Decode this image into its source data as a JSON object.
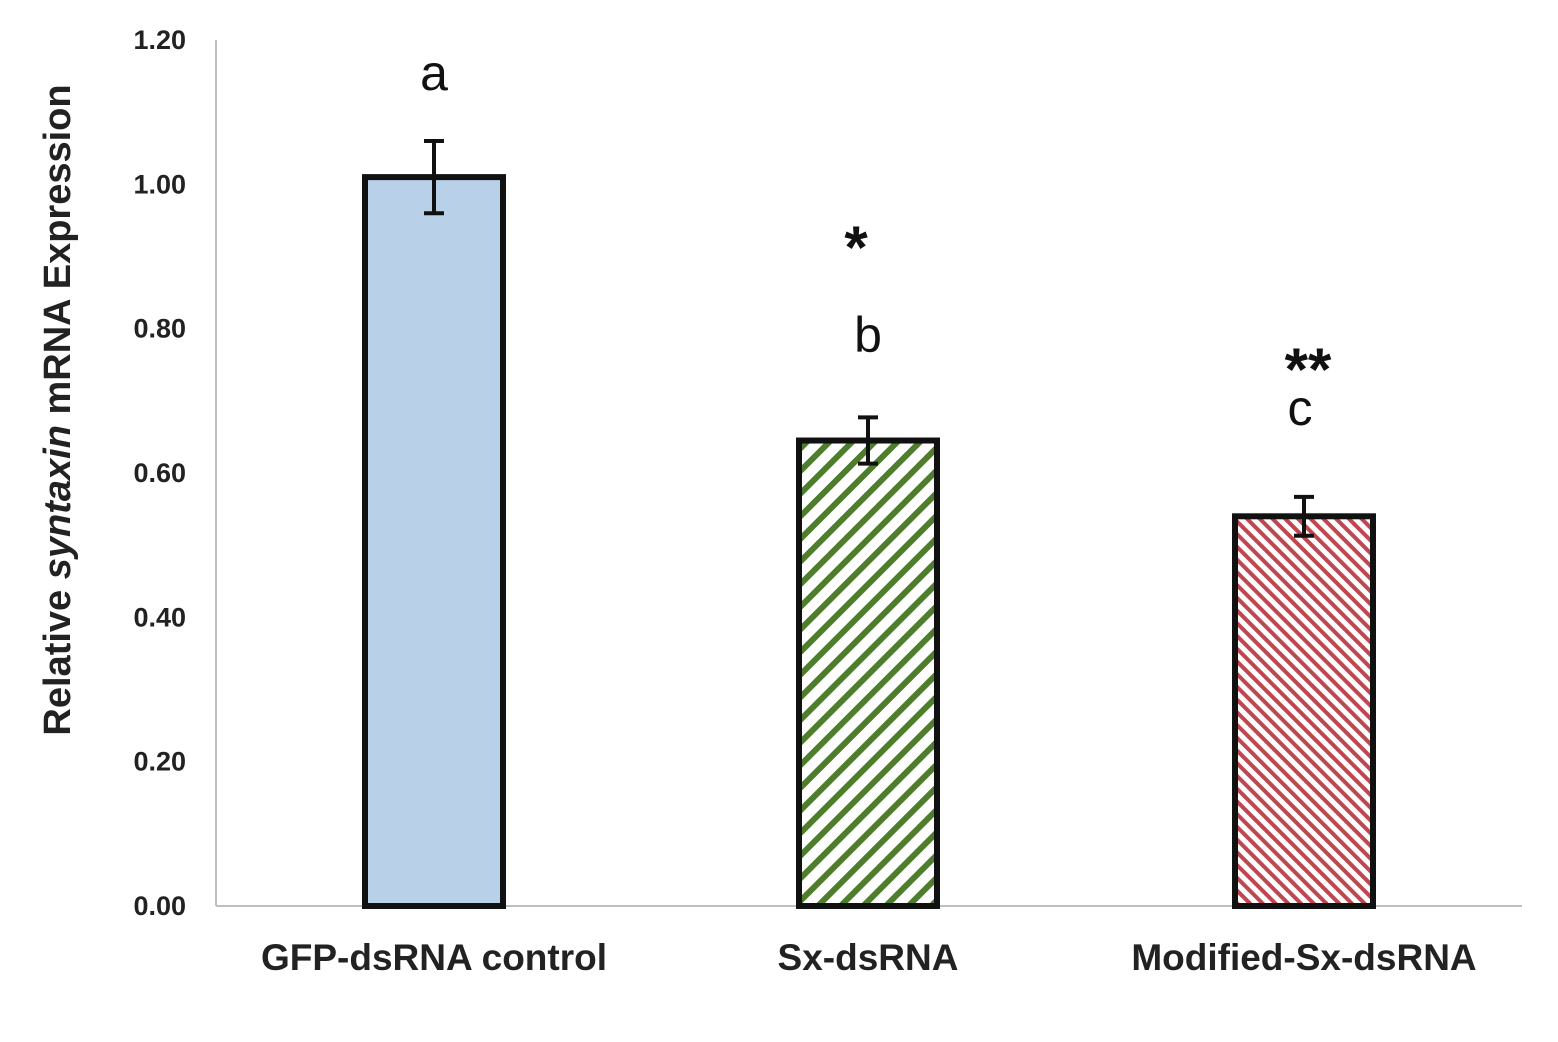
{
  "chart_data": {
    "type": "bar",
    "title": "",
    "xlabel": "",
    "ylabel_parts": [
      "Relative ",
      "syntaxin",
      " mRNA Expression"
    ],
    "ylim": [
      0,
      1.2
    ],
    "yticks": [
      "0.00",
      "0.20",
      "0.40",
      "0.60",
      "0.80",
      "1.00",
      "1.20"
    ],
    "grid": false,
    "categories": [
      "GFP-dsRNA control",
      "Sx-dsRNA",
      "Modified-Sx-dsRNA"
    ],
    "values": [
      1.01,
      0.645,
      0.54
    ],
    "errors": [
      0.05,
      0.032,
      0.027
    ],
    "significance_letters": [
      "a",
      "b",
      "c"
    ],
    "stars": [
      "",
      "*",
      "**"
    ],
    "fills": [
      {
        "kind": "solid",
        "color": "#b8d0e8"
      },
      {
        "kind": "hatch",
        "color": "#4e7d2c",
        "background": "#ffffff"
      },
      {
        "kind": "hatch",
        "color": "#c0464f",
        "background": "#ffffff"
      }
    ],
    "bar_stroke": "#111111"
  }
}
